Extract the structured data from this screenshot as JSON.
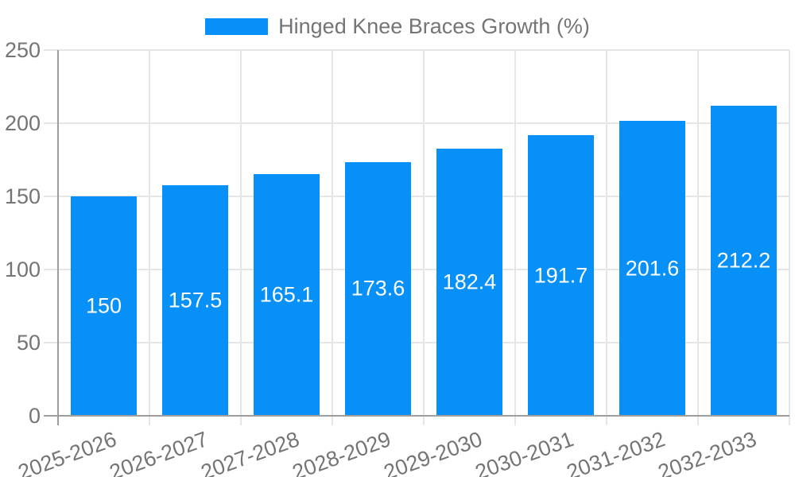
{
  "chart_data": {
    "type": "bar",
    "legend": "Hinged Knee Braces Growth (%)",
    "legend_position": "top-center",
    "categories": [
      "2025-2026",
      "2026-2027",
      "2027-2028",
      "2028-2029",
      "2029-2030",
      "2030-2031",
      "2031-2032",
      "2032-2033"
    ],
    "values": [
      150,
      157.5,
      165.1,
      173.6,
      182.4,
      191.7,
      201.6,
      212.2
    ],
    "value_labels": [
      "150",
      "157.5",
      "165.1",
      "173.6",
      "182.4",
      "191.7",
      "201.6",
      "212.2"
    ],
    "yticks": [
      0,
      50,
      100,
      150,
      200,
      250
    ],
    "ylim": [
      0,
      250
    ],
    "grid": true,
    "x_label_rotation_deg": -20,
    "colors": {
      "bar": "#0890f9",
      "bar_value_text": "#ffffff",
      "axis_text": "#757575",
      "gridline": "#e6e6e6",
      "axis_line": "#9e9e9e",
      "background": "#ffffff"
    }
  }
}
